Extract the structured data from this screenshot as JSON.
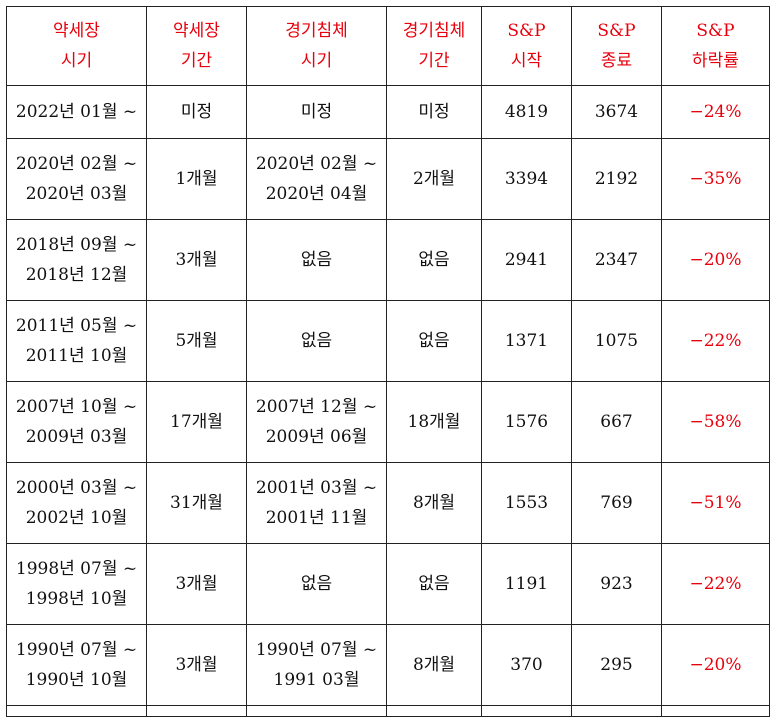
{
  "table": {
    "headers": [
      [
        "약세장",
        "시기"
      ],
      [
        "약세장",
        "기간"
      ],
      [
        "경기침체",
        "시기"
      ],
      [
        "경기침체",
        "기간"
      ],
      [
        "S&P",
        "시작"
      ],
      [
        "S&P",
        "종료"
      ],
      [
        "S&P",
        "하락률"
      ]
    ],
    "rows": [
      {
        "bear_period": [
          "2022년 01월 ~"
        ],
        "bear_duration": "미정",
        "recession_period": [
          "미정"
        ],
        "recession_duration": "미정",
        "sp_start": "4819",
        "sp_end": "3674",
        "sp_drop": "−24%"
      },
      {
        "bear_period": [
          "2020년 02월 ~",
          "2020년 03월"
        ],
        "bear_duration": "1개월",
        "recession_period": [
          "2020년 02월 ~",
          "2020년 04월"
        ],
        "recession_duration": "2개월",
        "sp_start": "3394",
        "sp_end": "2192",
        "sp_drop": "−35%"
      },
      {
        "bear_period": [
          "2018년 09월 ~",
          "2018년 12월"
        ],
        "bear_duration": "3개월",
        "recession_period": [
          "없음"
        ],
        "recession_duration": "없음",
        "sp_start": "2941",
        "sp_end": "2347",
        "sp_drop": "−20%"
      },
      {
        "bear_period": [
          "2011년 05월 ~",
          "2011년 10월"
        ],
        "bear_duration": "5개월",
        "recession_period": [
          "없음"
        ],
        "recession_duration": "없음",
        "sp_start": "1371",
        "sp_end": "1075",
        "sp_drop": "−22%"
      },
      {
        "bear_period": [
          "2007년 10월 ~",
          "2009년 03월"
        ],
        "bear_duration": "17개월",
        "recession_period": [
          "2007년 12월 ~",
          "2009년 06월"
        ],
        "recession_duration": "18개월",
        "sp_start": "1576",
        "sp_end": "667",
        "sp_drop": "−58%"
      },
      {
        "bear_period": [
          "2000년 03월 ~",
          "2002년 10월"
        ],
        "bear_duration": "31개월",
        "recession_period": [
          "2001년 03월 ~",
          "2001년 11월"
        ],
        "recession_duration": "8개월",
        "sp_start": "1553",
        "sp_end": "769",
        "sp_drop": "−51%"
      },
      {
        "bear_period": [
          "1998년 07월 ~",
          "1998년 10월"
        ],
        "bear_duration": "3개월",
        "recession_period": [
          "없음"
        ],
        "recession_duration": "없음",
        "sp_start": "1191",
        "sp_end": "923",
        "sp_drop": "−22%"
      },
      {
        "bear_period": [
          "1990년 07월 ~",
          "1990년 10월"
        ],
        "bear_duration": "3개월",
        "recession_period": [
          "1990년 07월 ~",
          "1991 03월"
        ],
        "recession_duration": "8개월",
        "sp_start": "370",
        "sp_end": "295",
        "sp_drop": "−20%"
      }
    ]
  },
  "colors": {
    "header_text": "#e8000c",
    "drop_text": "#e8000c",
    "body_text": "#111111",
    "border": "#222222"
  }
}
